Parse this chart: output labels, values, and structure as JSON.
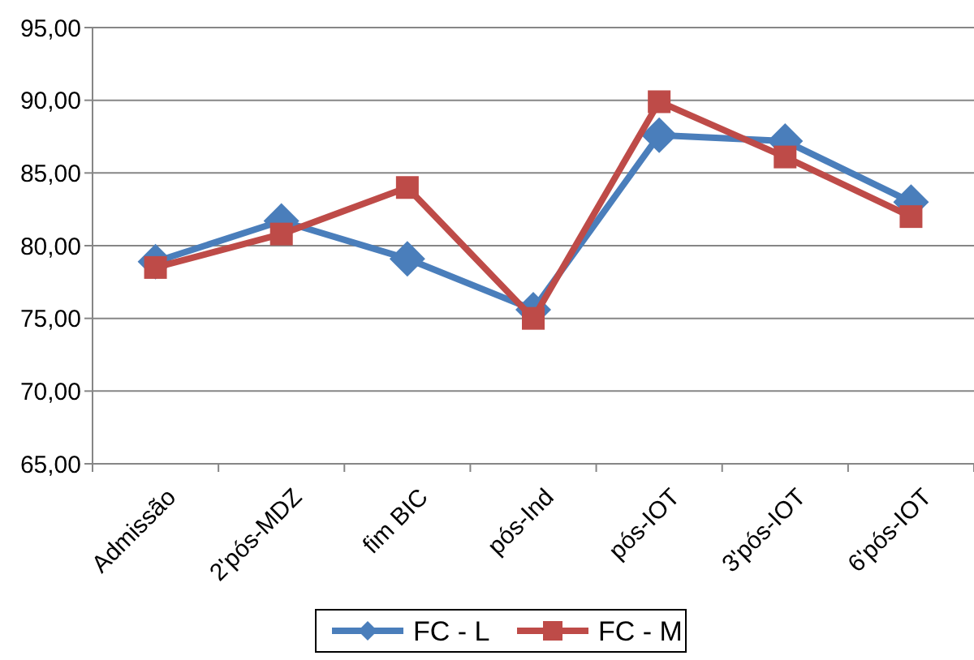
{
  "chart_data": {
    "type": "line",
    "categories": [
      "Admissão",
      "2'pós-MDZ",
      "fim BIC",
      "pós-Ind",
      "pós-IOT",
      "3'pós-IOT",
      "6'pós-IOT"
    ],
    "series": [
      {
        "name": "FC - L",
        "color": "#4a7ebb",
        "marker": "diamond",
        "values": [
          78.9,
          81.7,
          79.1,
          75.6,
          87.6,
          87.2,
          83.0
        ]
      },
      {
        "name": "FC - M",
        "color": "#be4b48",
        "marker": "square",
        "values": [
          78.5,
          80.8,
          84.0,
          75.0,
          89.9,
          86.1,
          82.0
        ]
      }
    ],
    "ylim": [
      65,
      95
    ],
    "yticks": [
      {
        "value": 65,
        "label": "65,00"
      },
      {
        "value": 70,
        "label": "70,00"
      },
      {
        "value": 75,
        "label": "75,00"
      },
      {
        "value": 80,
        "label": "80,00"
      },
      {
        "value": 85,
        "label": "85,00"
      },
      {
        "value": 90,
        "label": "90,00"
      },
      {
        "value": 95,
        "label": "95,00"
      }
    ],
    "grid": "y",
    "legend": "bottom",
    "line_style": "solid"
  }
}
